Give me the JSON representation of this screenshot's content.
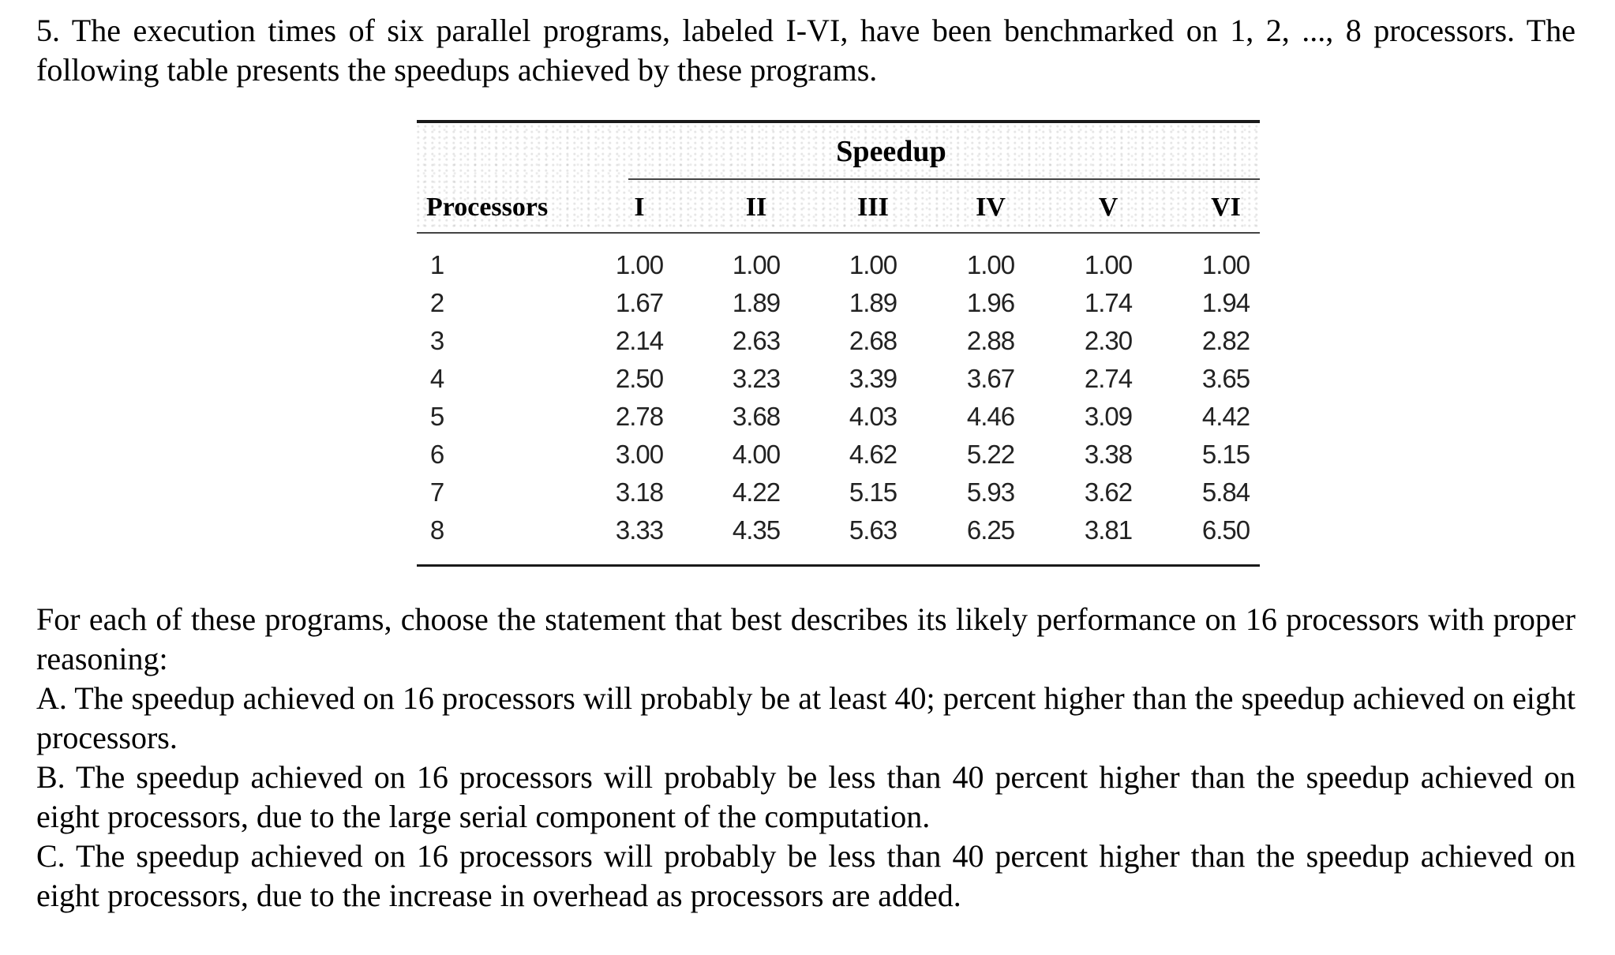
{
  "question": {
    "intro": "5. The execution times of six parallel programs, labeled I-VI, have been benchmarked on 1, 2, ..., 8 processors. The following table presents the speedups achieved by these programs."
  },
  "table": {
    "group_header": "Speedup",
    "row_header": "Processors",
    "columns": [
      "I",
      "II",
      "III",
      "IV",
      "V",
      "VI"
    ],
    "rows": [
      {
        "processors": "1",
        "values": [
          "1.00",
          "1.00",
          "1.00",
          "1.00",
          "1.00",
          "1.00"
        ]
      },
      {
        "processors": "2",
        "values": [
          "1.67",
          "1.89",
          "1.89",
          "1.96",
          "1.74",
          "1.94"
        ]
      },
      {
        "processors": "3",
        "values": [
          "2.14",
          "2.63",
          "2.68",
          "2.88",
          "2.30",
          "2.82"
        ]
      },
      {
        "processors": "4",
        "values": [
          "2.50",
          "3.23",
          "3.39",
          "3.67",
          "2.74",
          "3.65"
        ]
      },
      {
        "processors": "5",
        "values": [
          "2.78",
          "3.68",
          "4.03",
          "4.46",
          "3.09",
          "4.42"
        ]
      },
      {
        "processors": "6",
        "values": [
          "3.00",
          "4.00",
          "4.62",
          "5.22",
          "3.38",
          "5.15"
        ]
      },
      {
        "processors": "7",
        "values": [
          "3.18",
          "4.22",
          "5.15",
          "5.93",
          "3.62",
          "5.84"
        ]
      },
      {
        "processors": "8",
        "values": [
          "3.33",
          "4.35",
          "5.63",
          "6.25",
          "3.81",
          "6.50"
        ]
      }
    ]
  },
  "prompt": {
    "instruction": "For each of these programs, choose the statement that best describes its likely performance on 16 processors with proper reasoning:",
    "option_a": "A. The speedup achieved on 16 processors will probably be at least 40; percent higher than the speedup achieved on eight processors.",
    "option_b": "B. The speedup achieved on 16 processors will probably be less than 40 percent higher than the speedup achieved on eight processors, due to the large serial component of the computation.",
    "option_c": "C. The speedup achieved on 16 processors will probably be less than 40 percent higher than the speedup achieved on eight processors, due to the increase in overhead as processors are added."
  }
}
